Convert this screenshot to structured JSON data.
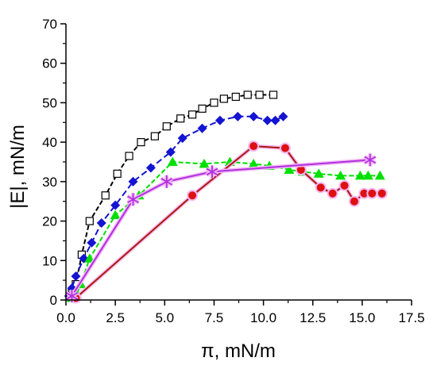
{
  "chart_data": {
    "type": "line",
    "title": "",
    "xlabel": "π, mN/m",
    "ylabel": "|E|, mN/m",
    "xlim": [
      0,
      17.5
    ],
    "ylim": [
      0,
      70
    ],
    "xticks": [
      0,
      2.5,
      5,
      7.5,
      10,
      12.5,
      15,
      17.5
    ],
    "xtick_labels": [
      "0.0",
      "2.5",
      "5.0",
      "7.5",
      "10.0",
      "12.5",
      "15.0",
      "17.5"
    ],
    "yticks": [
      0,
      10,
      20,
      30,
      40,
      50,
      60,
      70
    ],
    "ytick_labels": [
      "0",
      "10",
      "20",
      "30",
      "40",
      "50",
      "60",
      "70"
    ],
    "grid": false,
    "legend": false,
    "series": [
      {
        "marker": "open-square",
        "color": "#000000",
        "dash": "6,3",
        "points": [
          [
            0.3,
            2
          ],
          [
            0.5,
            4
          ],
          [
            0.8,
            11.5
          ],
          [
            1.2,
            20
          ],
          [
            2.0,
            26.5
          ],
          [
            2.6,
            32
          ],
          [
            3.2,
            36.5
          ],
          [
            3.8,
            40
          ],
          [
            4.5,
            41.5
          ],
          [
            5.1,
            44
          ],
          [
            5.8,
            46
          ],
          [
            6.4,
            47
          ],
          [
            6.9,
            48.5
          ],
          [
            7.5,
            50
          ],
          [
            8.0,
            51
          ],
          [
            8.6,
            51.5
          ],
          [
            9.2,
            52
          ],
          [
            9.8,
            52
          ],
          [
            10.5,
            52
          ]
        ]
      },
      {
        "marker": "filled-diamond",
        "color": "#1414d2",
        "dash": "8,4",
        "points": [
          [
            0.15,
            1
          ],
          [
            0.3,
            3
          ],
          [
            0.5,
            6
          ],
          [
            0.9,
            10.5
          ],
          [
            1.3,
            14.5
          ],
          [
            1.8,
            19.5
          ],
          [
            2.5,
            24
          ],
          [
            3.4,
            30
          ],
          [
            4.3,
            33.5
          ],
          [
            5.3,
            37.5
          ],
          [
            5.9,
            41
          ],
          [
            6.9,
            43.5
          ],
          [
            7.8,
            45.5
          ],
          [
            8.7,
            46.5
          ],
          [
            9.5,
            46.5
          ],
          [
            10.2,
            45.5
          ],
          [
            10.6,
            45.5
          ],
          [
            11.0,
            46.5
          ]
        ]
      },
      {
        "marker": "filled-triangle",
        "color": "#00e000",
        "dash": "6,3",
        "points": [
          [
            0.3,
            0.5
          ],
          [
            0.55,
            1.5
          ],
          [
            0.75,
            4
          ],
          [
            1.2,
            10.5
          ],
          [
            2.5,
            21.5
          ],
          [
            3.7,
            26.5
          ],
          [
            5.4,
            35
          ],
          [
            7.0,
            34.5
          ],
          [
            8.3,
            35
          ],
          [
            9.5,
            34.5
          ],
          [
            10.3,
            34
          ],
          [
            11.3,
            33
          ],
          [
            12.0,
            32.5
          ],
          [
            12.8,
            32
          ],
          [
            13.9,
            31.5
          ],
          [
            14.9,
            31.5
          ],
          [
            15.3,
            31.5
          ],
          [
            15.9,
            31.5
          ]
        ]
      },
      {
        "marker": "filled-circle",
        "color": "#dd1111",
        "line_color": "#aa1a0a",
        "dash": "",
        "points": [
          [
            0.5,
            0.5
          ],
          [
            6.4,
            26.5
          ],
          [
            9.5,
            39
          ],
          [
            11.1,
            38.5
          ],
          [
            11.9,
            33
          ],
          [
            12.9,
            28.5
          ],
          [
            13.5,
            27
          ],
          [
            14.1,
            29
          ],
          [
            14.6,
            25
          ],
          [
            15.1,
            27
          ],
          [
            15.5,
            27
          ],
          [
            16.0,
            27
          ]
        ]
      },
      {
        "marker": "asterisk",
        "color": "#b030e0",
        "dash": "",
        "points": [
          [
            0.3,
            1
          ],
          [
            3.4,
            25.5
          ],
          [
            5.1,
            30
          ],
          [
            7.4,
            32.5
          ],
          [
            15.4,
            35.5
          ]
        ]
      }
    ]
  }
}
